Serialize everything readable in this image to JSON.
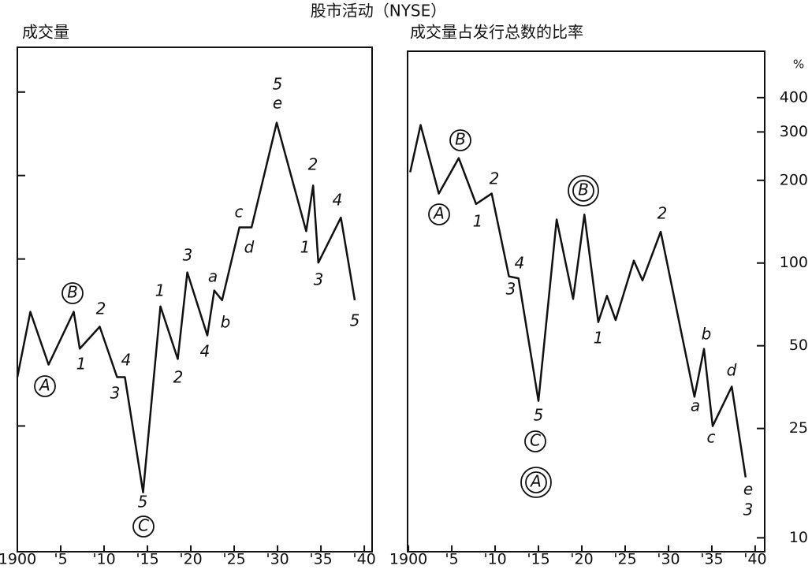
{
  "title": "股市活动（NYSE）",
  "chart_data": [
    {
      "type": "line",
      "title": "成交量",
      "log_scale": true,
      "tick_labels": false,
      "color": "#111111",
      "x": [
        1900,
        1901.5,
        1903.6,
        1906.5,
        1907.2,
        1909.5,
        1911.5,
        1912.4,
        1914.5,
        1916.5,
        1918.5,
        1919.6,
        1921.9,
        1922.7,
        1923.6,
        1925.6,
        1927,
        1929.9,
        1933.3,
        1934.1,
        1934.7,
        1937.3,
        1938.9
      ],
      "values": [
        37.5,
        64.5,
        41.6,
        64.5,
        47.5,
        57,
        37.5,
        37.5,
        14.4,
        67.5,
        43.6,
        89.5,
        53,
        77,
        71,
        130,
        130,
        310,
        126,
        184,
        97,
        141,
        71
      ],
      "xlim": [
        1900,
        1940.9
      ],
      "ylim": [
        8.8,
        580
      ],
      "xticks": [
        1900,
        {
          "value": 1905,
          "label": "'5"
        },
        {
          "value": 1910,
          "label": "'10"
        },
        {
          "value": 1915,
          "label": "'15"
        },
        {
          "value": 1920,
          "label": "'20"
        },
        {
          "value": 1925,
          "label": "'25"
        },
        {
          "value": 1930,
          "label": "'30"
        },
        {
          "value": 1935,
          "label": "'35"
        },
        {
          "value": 1940,
          "label": "'40"
        }
      ],
      "yticks": [
        25,
        100,
        200,
        400
      ],
      "annotations": [
        "5",
        "e",
        "2",
        "4",
        "c",
        "d",
        "1",
        "3",
        "5",
        "a",
        "3",
        "b",
        "4",
        "1",
        "2",
        "B",
        "2",
        "1",
        "4",
        "3",
        "A",
        "5",
        "C"
      ]
    },
    {
      "type": "line",
      "title": "成交量占发行总数的比率",
      "log_scale": true,
      "tick_labels": true,
      "y_unit": "%",
      "color": "#111111",
      "x": [
        1900.2,
        1901.4,
        1903.5,
        1905.8,
        1907.8,
        1909.6,
        1911.6,
        1912.7,
        1915,
        1917.1,
        1919,
        1920.3,
        1921.9,
        1922.9,
        1923.9,
        1926,
        1927,
        1929.1,
        1933,
        1934.1,
        1935.1,
        1937.3,
        1938.9
      ],
      "values": [
        214,
        318,
        179,
        241,
        164,
        179,
        89.4,
        88,
        31.5,
        144,
        74,
        150,
        61,
        76,
        62,
        102,
        86.5,
        130,
        32.6,
        48.7,
        25.5,
        35.5,
        16.6
      ],
      "xlim": [
        1899.9,
        1941.1
      ],
      "ylim": [
        8.9,
        590
      ],
      "xticks": [
        1900,
        {
          "value": 1905,
          "label": "'5"
        },
        {
          "value": 1910,
          "label": "'10"
        },
        {
          "value": 1915,
          "label": "'15"
        },
        {
          "value": 1920,
          "label": "'20"
        },
        {
          "value": 1925,
          "label": "'25"
        },
        {
          "value": 1930,
          "label": "'30"
        },
        {
          "value": 1935,
          "label": "'35"
        },
        {
          "value": 1940,
          "label": "'40"
        }
      ],
      "yticks": [
        10,
        25,
        50,
        100,
        200,
        300,
        400
      ],
      "annotations": [
        "B",
        "A",
        "1",
        "2",
        "4",
        "3",
        "5",
        "C",
        "A",
        "B",
        "1",
        "2",
        "b",
        "a",
        "c",
        "d",
        "e",
        "3"
      ]
    }
  ]
}
